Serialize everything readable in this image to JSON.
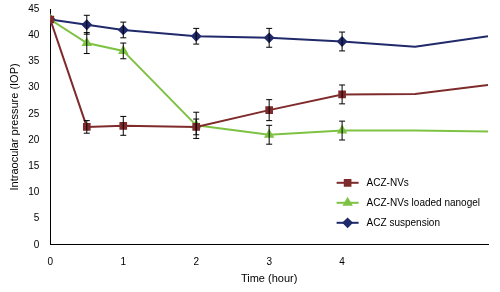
{
  "chart_data": {
    "type": "line",
    "x_label": "Time (hour)",
    "y_label": "Intraocular pressure (IOP)",
    "x": [
      0,
      0.5,
      1,
      2,
      3,
      4,
      5,
      6
    ],
    "xlim": [
      0,
      6
    ],
    "xticks": [
      0,
      1,
      2,
      3,
      4
    ],
    "ylim": [
      0,
      45
    ],
    "yticks": [
      0,
      5,
      10,
      15,
      20,
      25,
      30,
      35,
      40,
      45
    ],
    "grid": false,
    "legend": "lower right",
    "series": [
      {
        "name": "ACZ-NVs",
        "color": "#7f2b2b",
        "marker": "square",
        "values": [
          43,
          22.5,
          22.7,
          22.5,
          25.7,
          28.7,
          28.8,
          30.5
        ],
        "errors": [
          0,
          1.2,
          1.8,
          1.5,
          2,
          1.8,
          null,
          null
        ]
      },
      {
        "name": "ACZ-NVs loaded nanogel",
        "color": "#7ec243",
        "marker": "triangle",
        "values": [
          43,
          38.5,
          37,
          22.8,
          21,
          21.8,
          21.8,
          21.6
        ],
        "errors": [
          0,
          2,
          1.5,
          2.5,
          1.8,
          1.8,
          null,
          null
        ]
      },
      {
        "name": "ACZ suspension",
        "color": "#202a6b",
        "marker": "diamond",
        "values": [
          43,
          42,
          41,
          39.8,
          39.5,
          38.8,
          37.8,
          39.8
        ],
        "errors": [
          0,
          1.8,
          1.5,
          1.5,
          1.8,
          1.8,
          null,
          null
        ]
      }
    ]
  }
}
